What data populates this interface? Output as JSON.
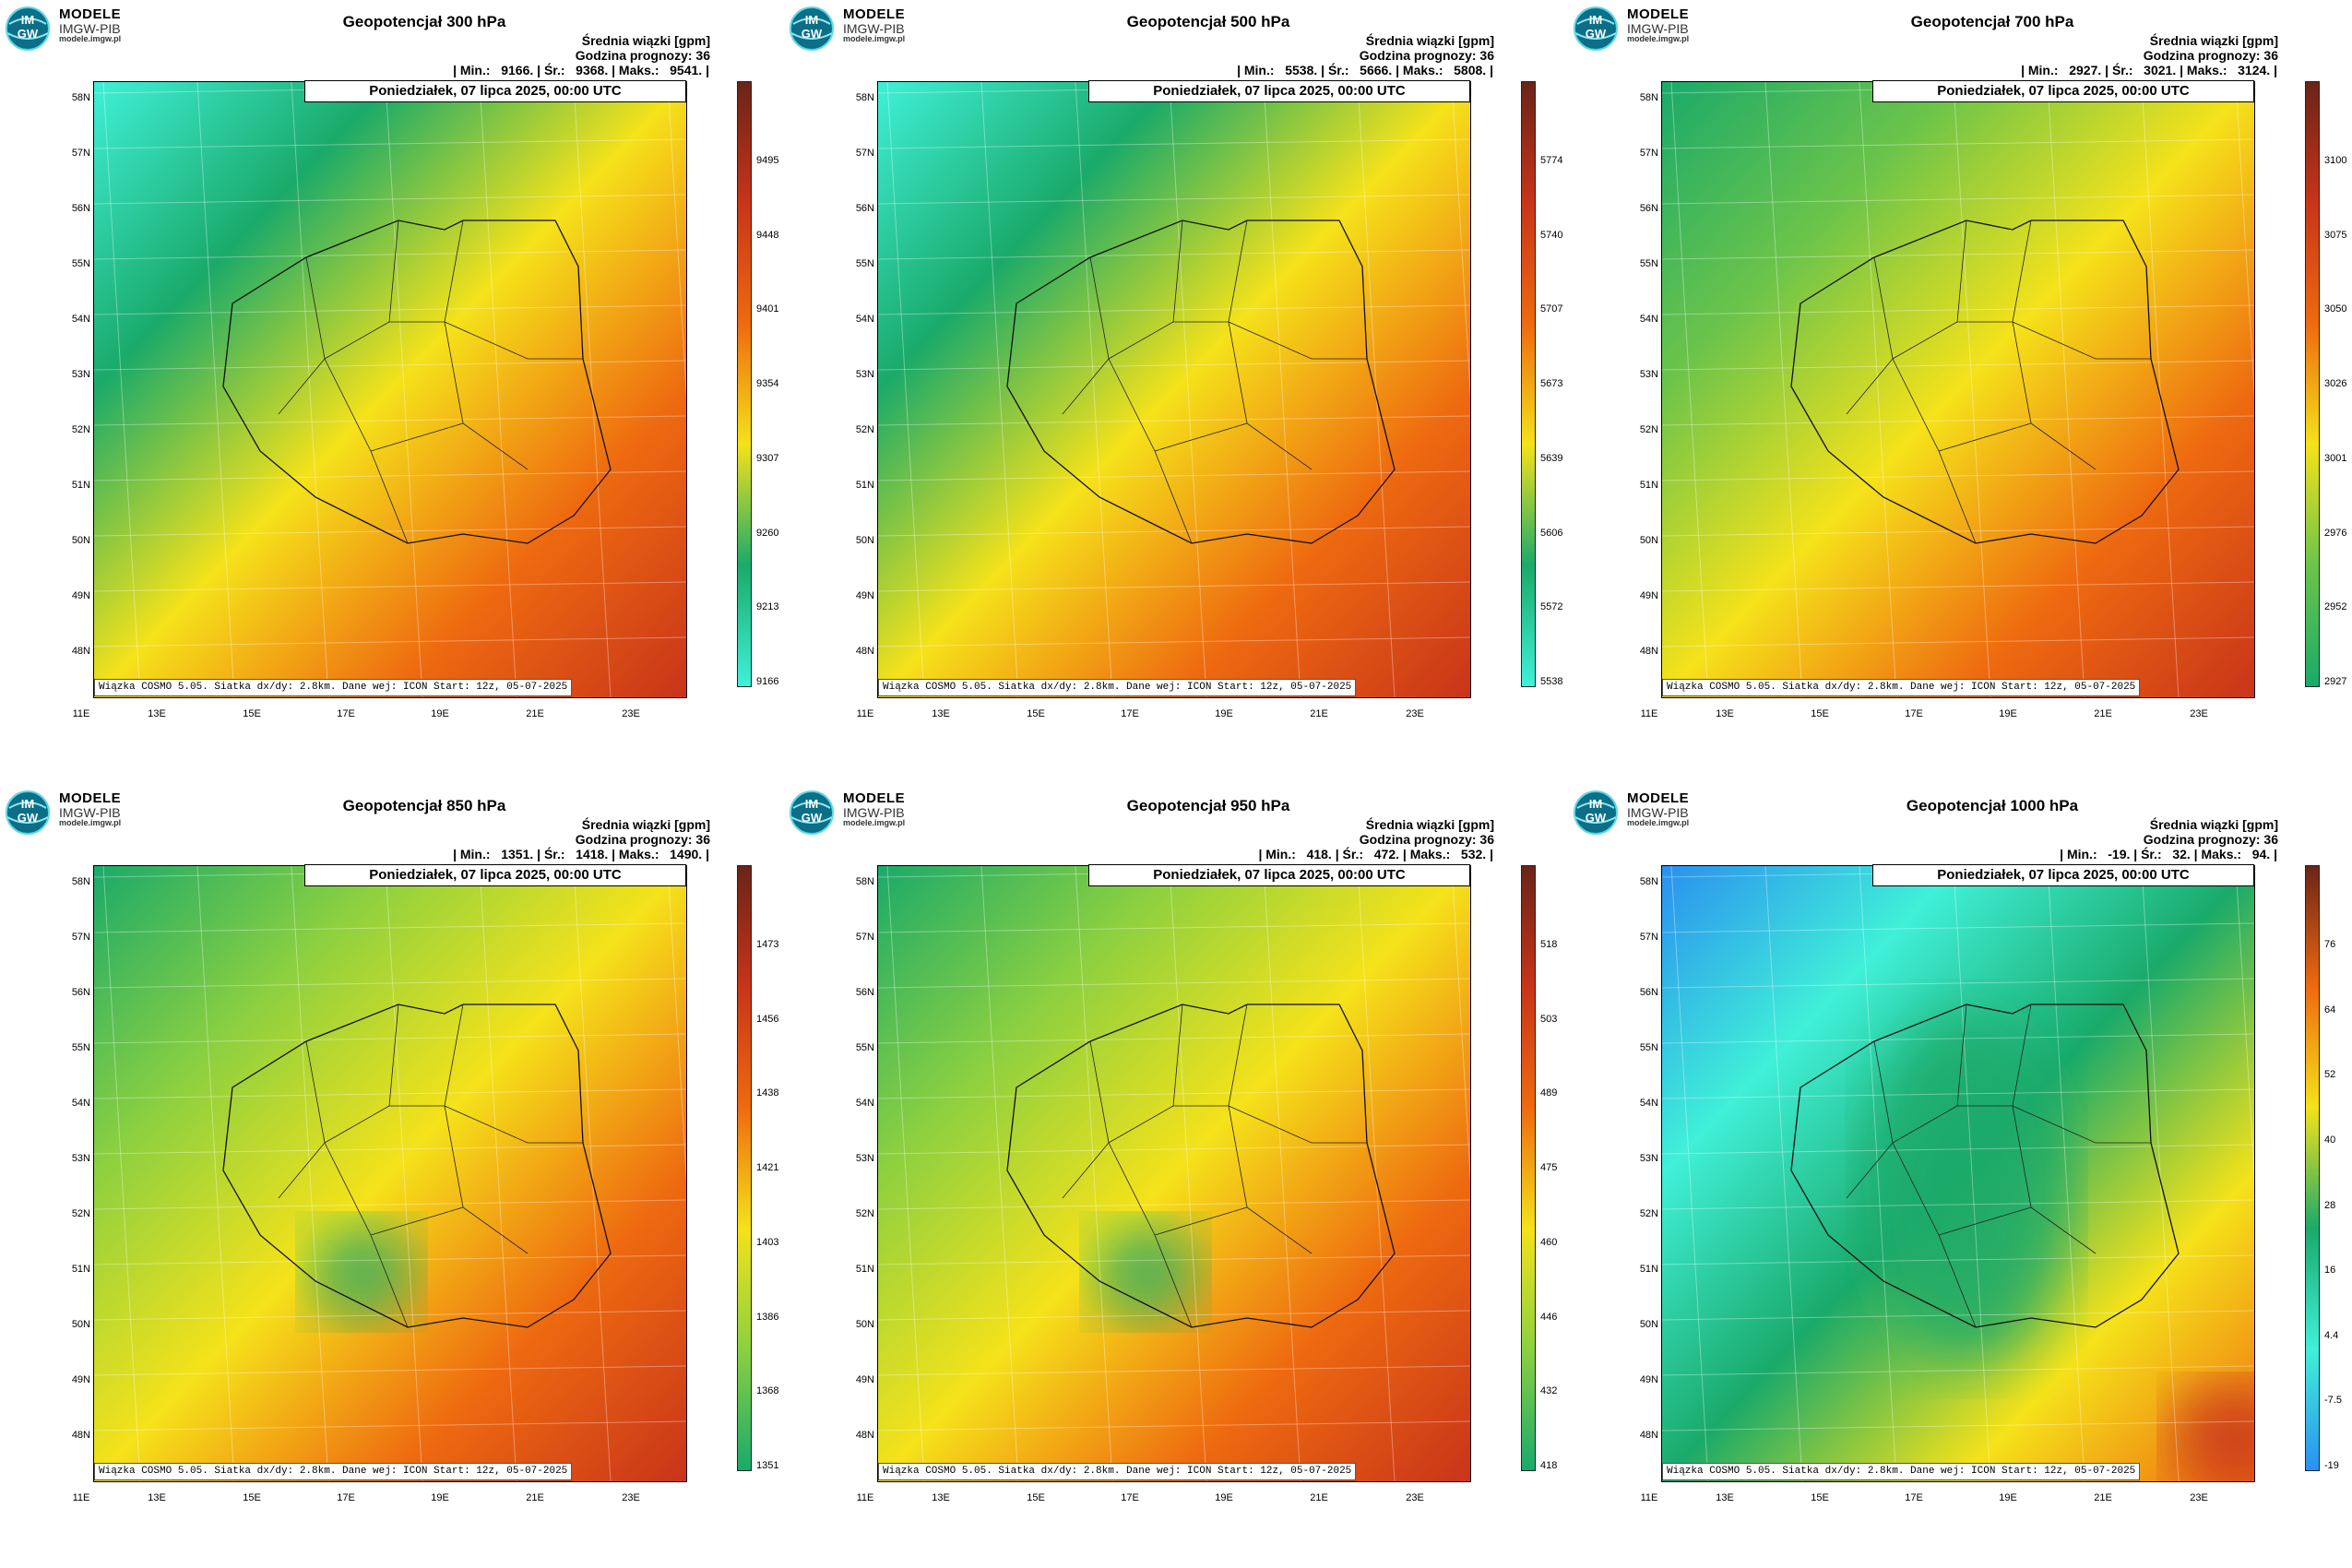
{
  "brand": {
    "line1": "MODELE",
    "line2": "IMGW-PIB",
    "line3": "modele.imgw.pl",
    "logo_text_top": "IM",
    "logo_text_bottom": "GW"
  },
  "common": {
    "subtitle": "Średnia wiązki [gpm]",
    "forecast_hour": "Godzina prognozy: 36",
    "date": "Poniedziałek, 07 lipca 2025, 00:00 UTC",
    "credit": "Wiązka COSMO 5.05. Siatka dx/dy: 2.8km. Dane wej: ICON Start: 12z, 05-07-2025",
    "lat_labels": [
      "58N",
      "57N",
      "56N",
      "55N",
      "54N",
      "53N",
      "52N",
      "51N",
      "50N",
      "49N",
      "48N"
    ],
    "lon_labels": [
      "11E",
      "13E",
      "15E",
      "17E",
      "19E",
      "21E",
      "23E"
    ]
  },
  "colors": {
    "cyan": "#40f0d8",
    "green": "#1aaa6a",
    "yellow": "#f5e21a",
    "orange": "#ee6a10",
    "red": "#c8341a",
    "brown": "#6a2418",
    "blue": "#2a90f0"
  },
  "chart_data": [
    {
      "type": "heatmap",
      "title": "Geopotencjał 300 hPa",
      "stats": "| Min.:   9166. | Śr.:   9368. | Maks.:   9541. |",
      "min": 9166,
      "mean": 9368,
      "max": 9541,
      "colorbar_ticks": [
        "9495",
        "9448",
        "9401",
        "9354",
        "9307",
        "9260",
        "9213",
        "9166"
      ]
    },
    {
      "type": "heatmap",
      "title": "Geopotencjał 500 hPa",
      "stats": "| Min.:   5538. | Śr.:   5666. | Maks.:   5808. |",
      "min": 5538,
      "mean": 5666,
      "max": 5808,
      "colorbar_ticks": [
        "5774",
        "5740",
        "5707",
        "5673",
        "5639",
        "5606",
        "5572",
        "5538"
      ]
    },
    {
      "type": "heatmap",
      "title": "Geopotencjał 700 hPa",
      "stats": "| Min.:   2927. | Śr.:   3021. | Maks.:   3124. |",
      "min": 2927,
      "mean": 3021,
      "max": 3124,
      "colorbar_ticks": [
        "3100",
        "3075",
        "3050",
        "3026",
        "3001",
        "2976",
        "2952",
        "2927"
      ]
    },
    {
      "type": "heatmap",
      "title": "Geopotencjał 850 hPa",
      "stats": "| Min.:   1351. | Śr.:   1418. | Maks.:   1490. |",
      "min": 1351,
      "mean": 1418,
      "max": 1490,
      "colorbar_ticks": [
        "1473",
        "1456",
        "1438",
        "1421",
        "1403",
        "1386",
        "1368",
        "1351"
      ]
    },
    {
      "type": "heatmap",
      "title": "Geopotencjał 950 hPa",
      "stats": "| Min.:   418. | Śr.:   472. | Maks.:   532. |",
      "min": 418,
      "mean": 472,
      "max": 532,
      "colorbar_ticks": [
        "518",
        "503",
        "489",
        "475",
        "460",
        "446",
        "432",
        "418"
      ]
    },
    {
      "type": "heatmap",
      "title": "Geopotencjał 1000 hPa",
      "stats": "| Min.:   -19. | Śr.:   32. | Maks.:   94. |",
      "min": -19,
      "mean": 32,
      "max": 94,
      "colorbar_ticks": [
        "76",
        "64",
        "52",
        "40",
        "28",
        "16",
        "4.4",
        "-7.5",
        "-19"
      ]
    }
  ]
}
